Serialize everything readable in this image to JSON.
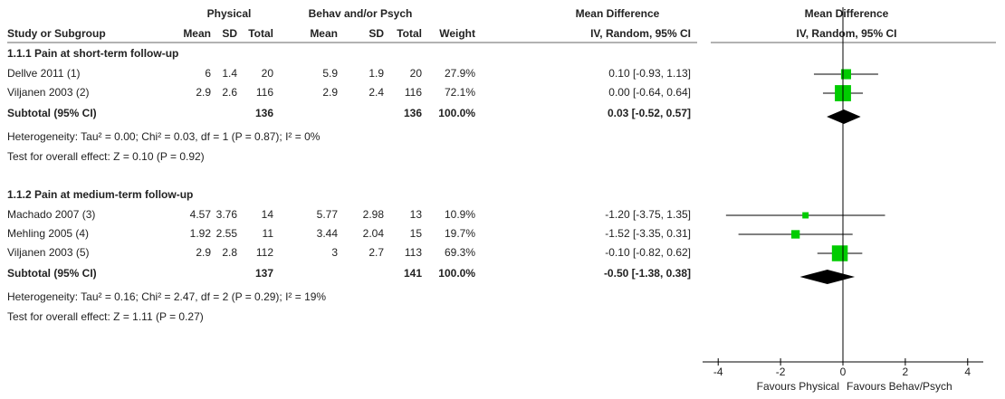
{
  "chart_data": {
    "type": "forest",
    "headers": {
      "group1": "Physical",
      "group2": "Behav and/or Psych",
      "effect": "Mean Difference",
      "columns": [
        "Study or Subgroup",
        "Mean",
        "SD",
        "Total",
        "Mean",
        "SD",
        "Total",
        "Weight",
        "IV, Random, 95% CI"
      ],
      "plot_title": "Mean Difference",
      "plot_subtitle": "IV, Random, 95% CI"
    },
    "subgroups": [
      {
        "title": "1.1.1 Pain at short-term follow-up",
        "studies": [
          {
            "name": "Dellve 2011 (1)",
            "cells": [
              "6",
              "1.4",
              "20",
              "5.9",
              "1.9",
              "20"
            ],
            "weight": 27.9,
            "weight_label": "27.9%",
            "md": 0.1,
            "ci": [
              -0.93,
              1.13
            ],
            "ci_label": "0.10 [-0.93, 1.13]"
          },
          {
            "name": "Viljanen 2003 (2)",
            "cells": [
              "2.9",
              "2.6",
              "116",
              "2.9",
              "2.4",
              "116"
            ],
            "weight": 72.1,
            "weight_label": "72.1%",
            "md": 0.0,
            "ci": [
              -0.64,
              0.64
            ],
            "ci_label": "0.00 [-0.64, 0.64]"
          }
        ],
        "subtotal": {
          "label": "Subtotal (95% CI)",
          "total1": "136",
          "total2": "136",
          "weight_label": "100.0%",
          "md": 0.03,
          "ci": [
            -0.52,
            0.57
          ],
          "ci_label": "0.03 [-0.52, 0.57]"
        },
        "heterogeneity": "Heterogeneity: Tau² = 0.00; Chi² = 0.03, df = 1 (P = 0.87); I² = 0%",
        "overall": "Test for overall effect: Z = 0.10 (P = 0.92)"
      },
      {
        "title": "1.1.2 Pain at medium-term follow-up",
        "studies": [
          {
            "name": "Machado 2007 (3)",
            "cells": [
              "4.57",
              "3.76",
              "14",
              "5.77",
              "2.98",
              "13"
            ],
            "weight": 10.9,
            "weight_label": "10.9%",
            "md": -1.2,
            "ci": [
              -3.75,
              1.35
            ],
            "ci_label": "-1.20 [-3.75, 1.35]"
          },
          {
            "name": "Mehling 2005 (4)",
            "cells": [
              "1.92",
              "2.55",
              "11",
              "3.44",
              "2.04",
              "15"
            ],
            "weight": 19.7,
            "weight_label": "19.7%",
            "md": -1.52,
            "ci": [
              -3.35,
              0.31
            ],
            "ci_label": "-1.52 [-3.35, 0.31]"
          },
          {
            "name": "Viljanen 2003 (5)",
            "cells": [
              "2.9",
              "2.8",
              "112",
              "3",
              "2.7",
              "113"
            ],
            "weight": 69.3,
            "weight_label": "69.3%",
            "md": -0.1,
            "ci": [
              -0.82,
              0.62
            ],
            "ci_label": "-0.10 [-0.82, 0.62]"
          }
        ],
        "subtotal": {
          "label": "Subtotal (95% CI)",
          "total1": "137",
          "total2": "141",
          "weight_label": "100.0%",
          "md": -0.5,
          "ci": [
            -1.38,
            0.38
          ],
          "ci_label": "-0.50 [-1.38, 0.38]"
        },
        "heterogeneity": "Heterogeneity: Tau² = 0.16; Chi² = 2.47, df = 2 (P = 0.29); I² = 19%",
        "overall": "Test for overall effect: Z = 1.11 (P = 0.27)"
      }
    ],
    "xlim": [
      -4.5,
      4.5
    ],
    "xticks": [
      -4,
      -2,
      0,
      2,
      4
    ],
    "x_labels": [
      "Favours Physical",
      "Favours Behav/Psych"
    ],
    "square_color": "#00cc00",
    "diamond_color": "#000000"
  }
}
